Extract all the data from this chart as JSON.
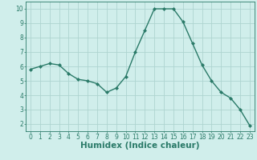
{
  "x": [
    0,
    1,
    2,
    3,
    4,
    5,
    6,
    7,
    8,
    9,
    10,
    11,
    12,
    13,
    14,
    15,
    16,
    17,
    18,
    19,
    20,
    21,
    22,
    23
  ],
  "y": [
    5.8,
    6.0,
    6.2,
    6.1,
    5.5,
    5.1,
    5.0,
    4.8,
    4.2,
    4.5,
    5.3,
    7.0,
    8.5,
    10.0,
    10.0,
    10.0,
    9.1,
    7.6,
    6.1,
    5.0,
    4.2,
    3.8,
    3.0,
    1.9
  ],
  "line_color": "#2a7a68",
  "marker": "D",
  "marker_size": 2.0,
  "bg_color": "#d0eeeb",
  "grid_color": "#aed4d0",
  "xlabel": "Humidex (Indice chaleur)",
  "xlabel_fontsize": 7.5,
  "xlim": [
    -0.5,
    23.5
  ],
  "ylim": [
    1.5,
    10.5
  ],
  "yticks": [
    2,
    3,
    4,
    5,
    6,
    7,
    8,
    9,
    10
  ],
  "xticks": [
    0,
    1,
    2,
    3,
    4,
    5,
    6,
    7,
    8,
    9,
    10,
    11,
    12,
    13,
    14,
    15,
    16,
    17,
    18,
    19,
    20,
    21,
    22,
    23
  ],
  "tick_fontsize": 5.5,
  "linewidth": 1.0
}
